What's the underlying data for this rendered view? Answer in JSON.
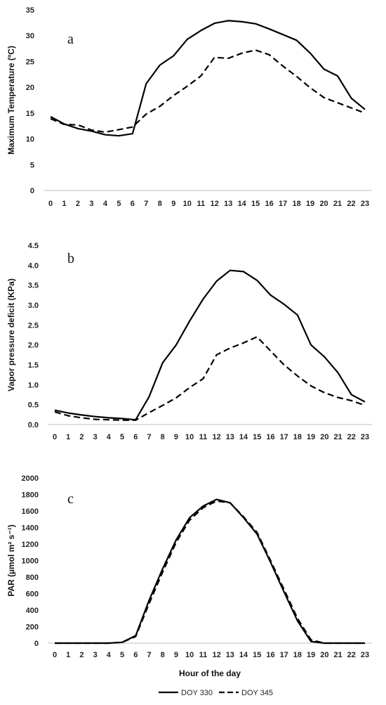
{
  "chart_data": [
    {
      "type": "line",
      "panel_label": "a",
      "ylabel": "Maximum Temperature (ºC)",
      "xlabel": "",
      "ylim": [
        0,
        35
      ],
      "yticks": [
        "0",
        "5",
        "10",
        "15",
        "20",
        "25",
        "30",
        "35"
      ],
      "x": [
        0,
        1,
        2,
        3,
        4,
        5,
        6,
        7,
        8,
        9,
        10,
        11,
        12,
        13,
        14,
        15,
        16,
        17,
        18,
        19,
        20,
        21,
        22,
        23
      ],
      "series": [
        {
          "name": "DOY 330",
          "style": "solid",
          "values": [
            14.3,
            12.9,
            12.0,
            11.5,
            10.8,
            10.6,
            11.0,
            20.7,
            24.3,
            26.1,
            29.3,
            31.0,
            32.4,
            32.9,
            32.7,
            32.3,
            31.3,
            30.2,
            29.1,
            26.6,
            23.5,
            22.2,
            17.9,
            15.7
          ]
        },
        {
          "name": "DOY 345",
          "style": "dashed",
          "values": [
            13.9,
            12.8,
            12.7,
            11.7,
            11.3,
            11.8,
            12.3,
            14.8,
            16.3,
            18.4,
            20.2,
            22.2,
            25.8,
            25.6,
            26.6,
            27.2,
            26.3,
            24.1,
            22.1,
            19.9,
            18.0,
            17.0,
            16.0,
            15.0
          ]
        }
      ]
    },
    {
      "type": "line",
      "panel_label": "b",
      "ylabel": "Vapor pressure deficit (KPa)",
      "xlabel": "",
      "ylim": [
        0,
        4.5
      ],
      "yticks": [
        "0.0",
        "0.5",
        "1.0",
        "1.5",
        "2.0",
        "2.5",
        "3.0",
        "3.5",
        "4.0",
        "4.5"
      ],
      "x": [
        0,
        1,
        2,
        3,
        4,
        5,
        6,
        7,
        8,
        9,
        10,
        11,
        12,
        13,
        14,
        15,
        16,
        17,
        18,
        19,
        20,
        21,
        22,
        23
      ],
      "series": [
        {
          "name": "DOY 330",
          "style": "solid",
          "values": [
            0.36,
            0.29,
            0.24,
            0.2,
            0.17,
            0.15,
            0.12,
            0.7,
            1.55,
            2.0,
            2.6,
            3.15,
            3.6,
            3.87,
            3.84,
            3.62,
            3.25,
            3.02,
            2.75,
            2.0,
            1.7,
            1.3,
            0.75,
            0.57
          ]
        },
        {
          "name": "DOY 345",
          "style": "dashed",
          "values": [
            0.32,
            0.22,
            0.17,
            0.13,
            0.12,
            0.11,
            0.11,
            0.3,
            0.48,
            0.67,
            0.93,
            1.15,
            1.75,
            1.92,
            2.05,
            2.2,
            1.85,
            1.5,
            1.22,
            0.97,
            0.8,
            0.68,
            0.6,
            0.48
          ]
        }
      ]
    },
    {
      "type": "line",
      "panel_label": "c",
      "ylabel": "PAR (µmol m² s⁻¹)",
      "xlabel": "Hour of the day",
      "ylim": [
        0,
        2000
      ],
      "yticks": [
        "0",
        "200",
        "400",
        "600",
        "800",
        "1000",
        "1200",
        "1400",
        "1600",
        "1800",
        "2000"
      ],
      "x": [
        0,
        1,
        2,
        3,
        4,
        5,
        6,
        7,
        8,
        9,
        10,
        11,
        12,
        13,
        14,
        15,
        16,
        17,
        18,
        19,
        20,
        21,
        22,
        23
      ],
      "series": [
        {
          "name": "DOY 330",
          "style": "solid",
          "values": [
            0,
            0,
            0,
            0,
            0,
            10,
            90,
            520,
            900,
            1250,
            1520,
            1660,
            1740,
            1700,
            1520,
            1320,
            980,
            620,
            270,
            20,
            0,
            0,
            0,
            0
          ]
        },
        {
          "name": "DOY 345",
          "style": "dashed",
          "values": [
            0,
            0,
            0,
            0,
            0,
            10,
            80,
            480,
            860,
            1220,
            1490,
            1640,
            1720,
            1700,
            1530,
            1340,
            1000,
            650,
            300,
            40,
            0,
            0,
            0,
            0
          ]
        }
      ]
    }
  ],
  "legend": {
    "placement": "bottom-center",
    "items": [
      {
        "label": "DOY 330",
        "style": "solid"
      },
      {
        "label": "DOY 345",
        "style": "dashed"
      }
    ]
  },
  "colors": {
    "line": "#000000",
    "axis": "#bfbfbf",
    "text": "#222222"
  }
}
